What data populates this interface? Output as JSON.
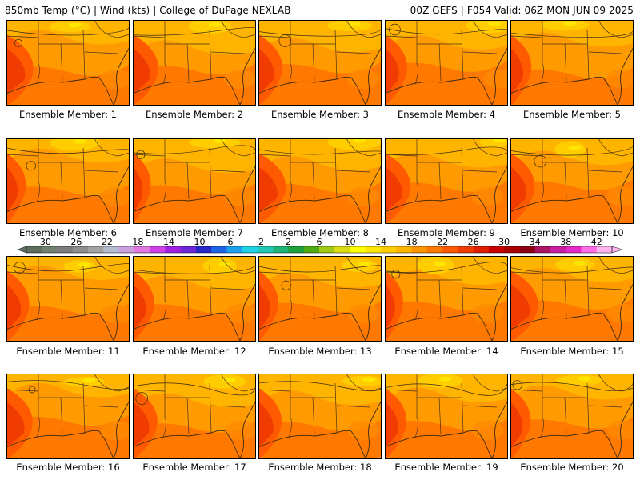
{
  "header": {
    "left": "850mb Temp (°C) | Wind (kts) | College of DuPage NEXLAB",
    "right": "00Z GEFS | F054 Valid: 06Z MON JUN 09 2025"
  },
  "members": [
    {
      "label": "Ensemble Member: 1"
    },
    {
      "label": "Ensemble Member: 2"
    },
    {
      "label": "Ensemble Member: 3"
    },
    {
      "label": "Ensemble Member: 4"
    },
    {
      "label": "Ensemble Member: 5"
    },
    {
      "label": "Ensemble Member: 6"
    },
    {
      "label": "Ensemble Member: 7"
    },
    {
      "label": "Ensemble Member: 8"
    },
    {
      "label": "Ensemble Member: 9"
    },
    {
      "label": "Ensemble Member: 10"
    },
    {
      "label": "Ensemble Member: 11"
    },
    {
      "label": "Ensemble Member: 12"
    },
    {
      "label": "Ensemble Member: 13"
    },
    {
      "label": "Ensemble Member: 14"
    },
    {
      "label": "Ensemble Member: 15"
    },
    {
      "label": "Ensemble Member: 16"
    },
    {
      "label": "Ensemble Member: 17"
    },
    {
      "label": "Ensemble Member: 18"
    },
    {
      "label": "Ensemble Member: 19"
    },
    {
      "label": "Ensemble Member: 20"
    }
  ],
  "legend": {
    "labels": [
      "−30",
      "−26",
      "−22",
      "−18",
      "−14",
      "−10",
      "−6",
      "−2",
      "2",
      "6",
      "10",
      "14",
      "18",
      "22",
      "26",
      "30",
      "34",
      "38",
      "42"
    ],
    "colors": [
      "#5e6e5e",
      "#728272",
      "#7c7c7c",
      "#8e8e8e",
      "#a2a2a2",
      "#b4bcd0",
      "#c9a0dc",
      "#e07ae0",
      "#d040e8",
      "#a020e0",
      "#6e28d8",
      "#2828c8",
      "#1e64e6",
      "#1ea0f0",
      "#1ed2e6",
      "#22c8b4",
      "#20b478",
      "#1ea03c",
      "#50aa14",
      "#a0c814",
      "#dcdc14",
      "#ffff00",
      "#ffe600",
      "#ffcd00",
      "#ffb400",
      "#ff9600",
      "#ff7800",
      "#ff5a00",
      "#f03c00",
      "#e01e00",
      "#c80000",
      "#aa0000",
      "#8c0014",
      "#aa1464",
      "#c81ea0",
      "#e628c8",
      "#ff6ee6",
      "#ffb4f0"
    ]
  }
}
